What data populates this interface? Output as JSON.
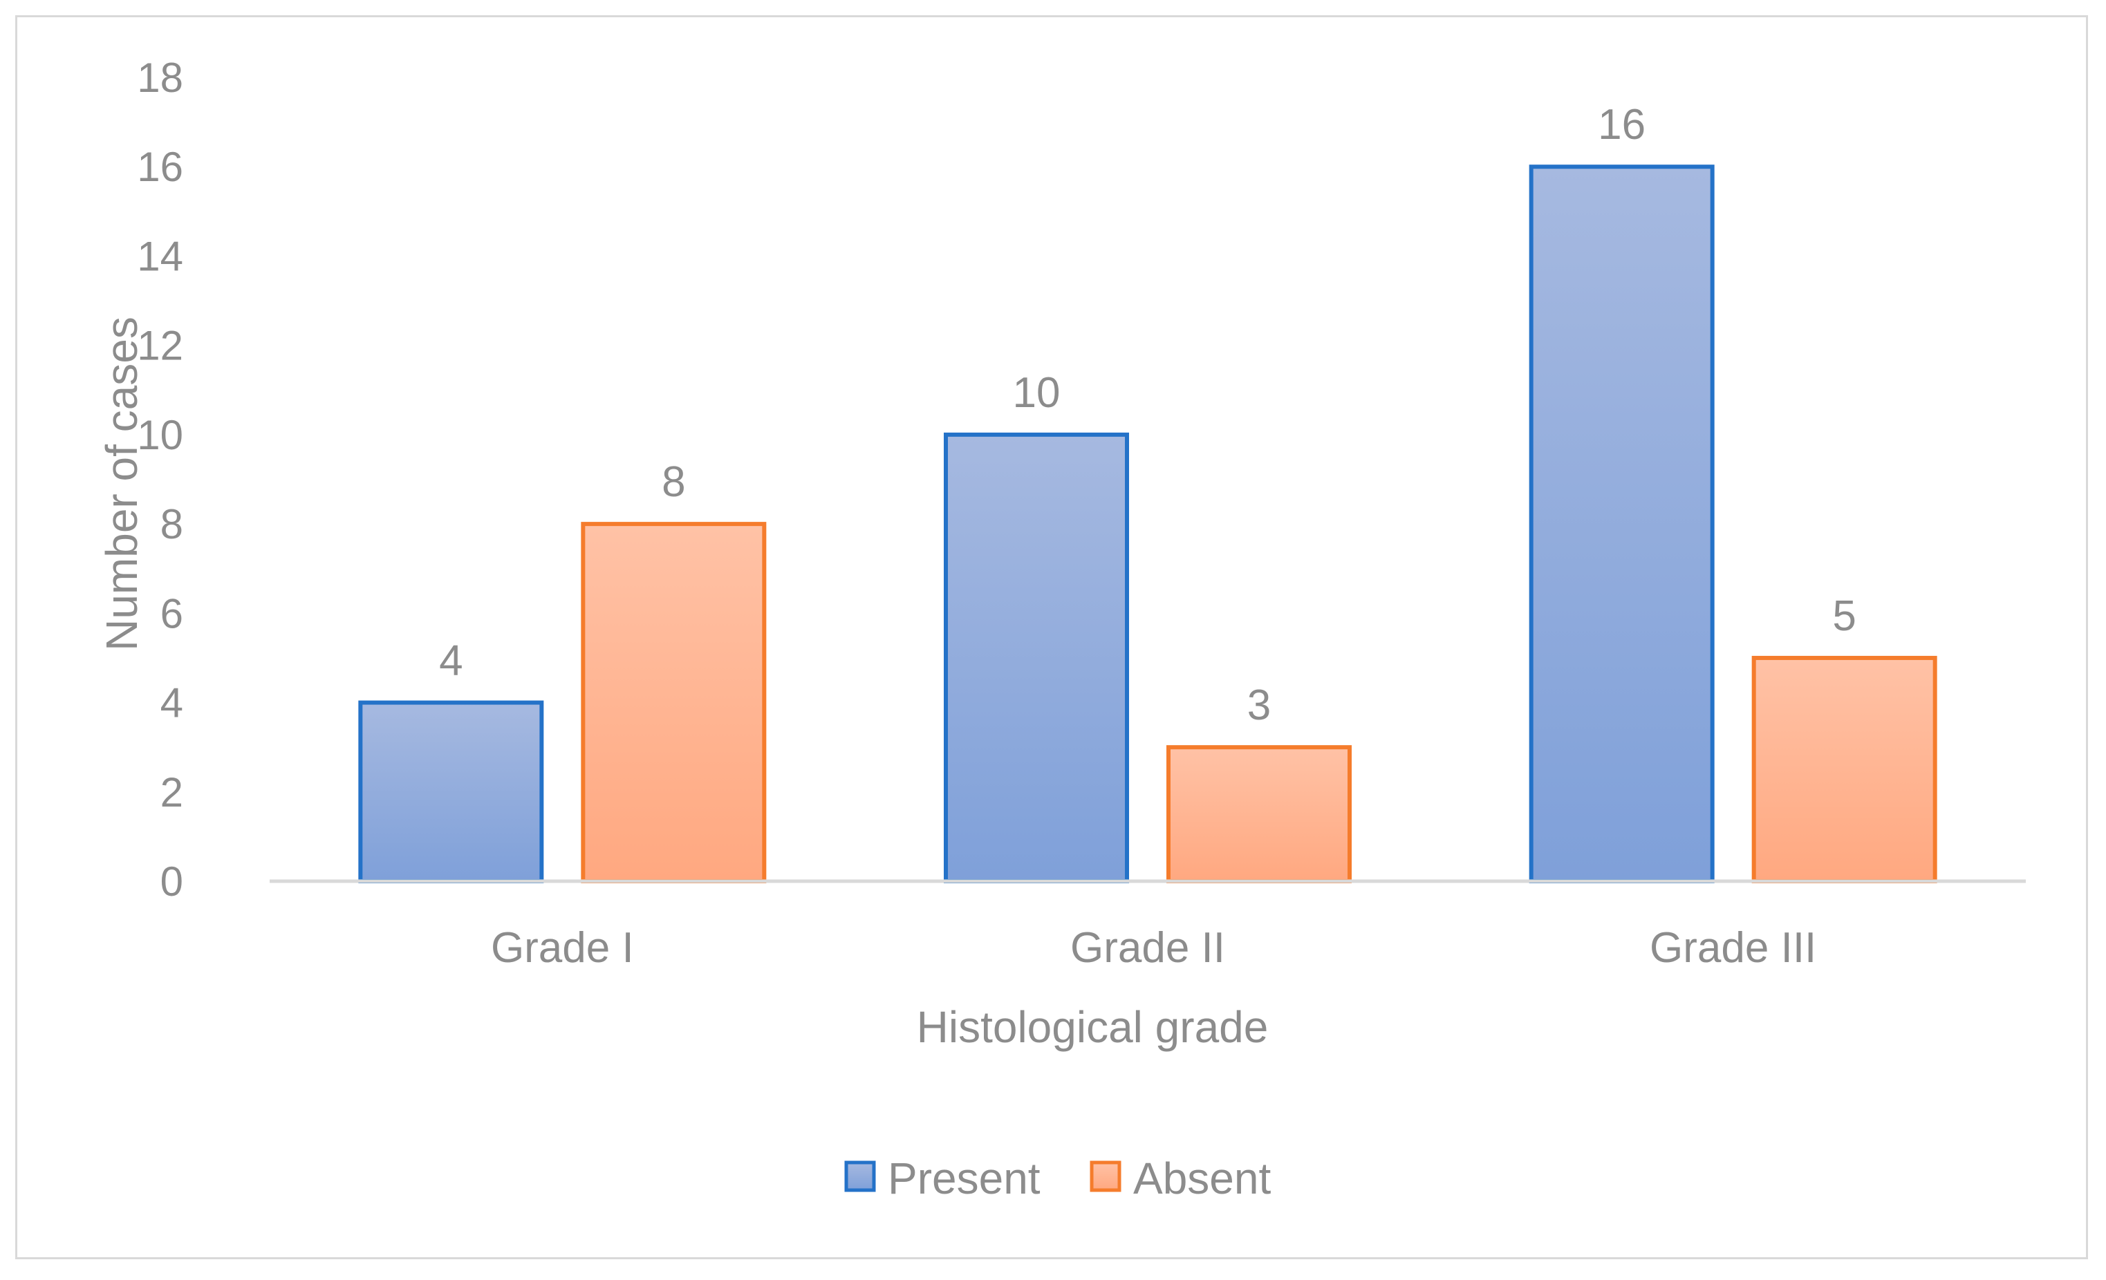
{
  "chart_data": {
    "type": "bar",
    "title": "",
    "xlabel": "Histological grade",
    "ylabel": "Number of cases",
    "ylim": [
      0,
      18
    ],
    "yticks": [
      0,
      2,
      4,
      6,
      8,
      10,
      12,
      14,
      16,
      18
    ],
    "categories": [
      "Grade I",
      "Grade II",
      "Grade III"
    ],
    "series": [
      {
        "name": "Present",
        "values": [
          4,
          10,
          16
        ],
        "fill_top": "#a6b9e0",
        "fill_bottom": "#7fa0d9",
        "stroke": "#2472c8"
      },
      {
        "name": "Absent",
        "values": [
          8,
          3,
          5
        ],
        "fill_top": "#ffc2a6",
        "fill_bottom": "#ffa880",
        "stroke": "#f57c2c"
      }
    ],
    "grid": false,
    "legend": "bottom",
    "data_labels": true
  }
}
